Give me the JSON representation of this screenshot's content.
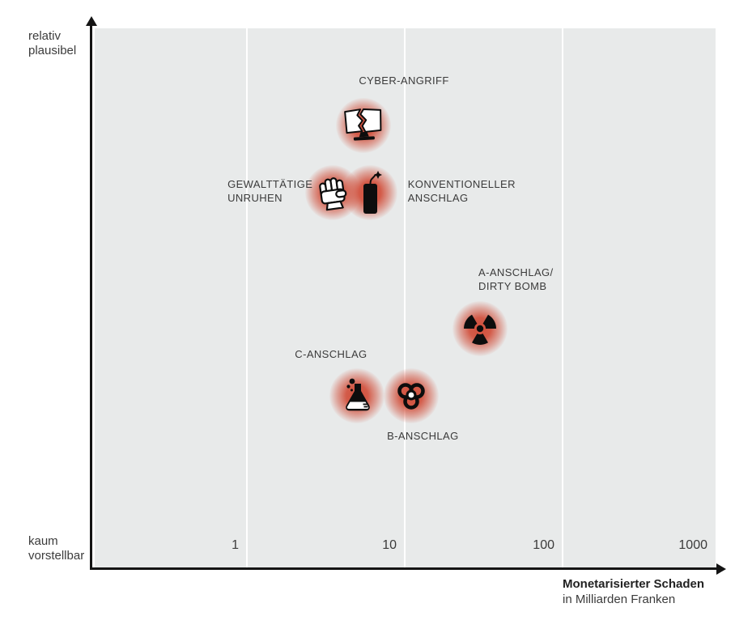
{
  "title_block": {
    "title": "Monetarisierter Schaden",
    "subtitle": "in Milliarden Franken"
  },
  "y_axis": {
    "top_label_lines": [
      "relativ",
      "plausibel"
    ],
    "bottom_label_lines": [
      "kaum",
      "vorstellbar"
    ]
  },
  "x_axis": {
    "tick_labels": [
      "1",
      "10",
      "100",
      "1000"
    ]
  },
  "colors": {
    "plot_bg": "#e8eaea",
    "gridline": "#ffffff",
    "axis": "#141414",
    "blob_red": "#d14f3b",
    "label_text": "#3b3b3b"
  },
  "chart_data": {
    "type": "scatter",
    "title": "",
    "xlabel": "Monetarisierter Schaden in Milliarden Franken",
    "ylabel": "Plausibilität (kaum vorstellbar bis relativ plausibel)",
    "x_scale": "log",
    "x_ticks": [
      1,
      10,
      100,
      1000
    ],
    "x_range": [
      0.1,
      1000
    ],
    "y_range": [
      0,
      1
    ],
    "grid": true,
    "points": [
      {
        "name": "Cyber-Angriff",
        "icon": "broken-monitor-icon",
        "damage_billions": 5.5,
        "plausibility": 0.82,
        "label_lines": [
          "CYBER-ANGRIFF"
        ],
        "label_offset": [
          -6,
          -64
        ]
      },
      {
        "name": "Gewalttätige Unruhen",
        "icon": "raised-fist-icon",
        "damage_billions": 3.5,
        "plausibility": 0.695,
        "label_lines": [
          "GEWALTTÄTIGE",
          "UNRUHEN"
        ],
        "label_offset": [
          -130,
          -19
        ]
      },
      {
        "name": "Konventioneller Anschlag",
        "icon": "dynamite-icon",
        "damage_billions": 6,
        "plausibility": 0.695,
        "label_lines": [
          "KONVENTIONELLER",
          "ANSCHLAG"
        ],
        "label_offset": [
          47,
          -19
        ]
      },
      {
        "name": "A-Anschlag / Dirty Bomb",
        "icon": "radiation-icon",
        "damage_billions": 30,
        "plausibility": 0.443,
        "label_lines": [
          "A-ANSCHLAG/",
          "DIRTY BOMB"
        ],
        "label_offset": [
          -2,
          -78
        ]
      },
      {
        "name": "C-Anschlag",
        "icon": "flask-icon",
        "damage_billions": 5,
        "plausibility": 0.318,
        "label_lines": [
          "C-ANSCHLAG"
        ],
        "label_offset": [
          -77,
          -60
        ]
      },
      {
        "name": "B-Anschlag",
        "icon": "biohazard-icon",
        "damage_billions": 11,
        "plausibility": 0.318,
        "label_lines": [
          "B-ANSCHLAG"
        ],
        "label_offset": [
          -30,
          41
        ]
      }
    ]
  }
}
